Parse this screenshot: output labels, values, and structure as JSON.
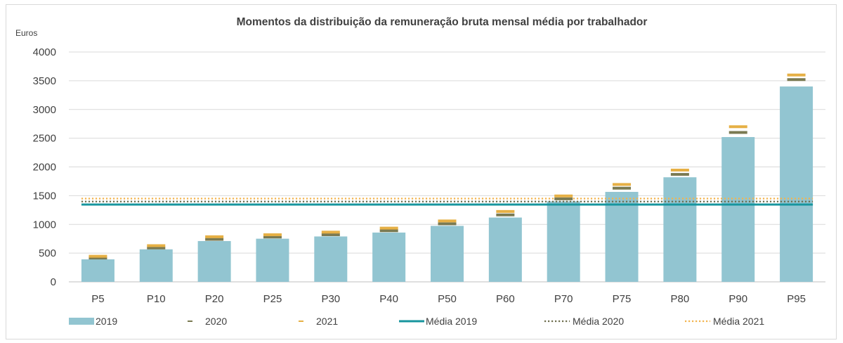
{
  "chart_data": {
    "type": "bar",
    "title": "Momentos da distribuição da remuneração bruta mensal média por trabalhador",
    "ylabel": "Euros",
    "xlabel": "",
    "ylim": [
      0,
      4000
    ],
    "yticks": [
      0,
      500,
      1000,
      1500,
      2000,
      2500,
      3000,
      3500,
      4000
    ],
    "grid": true,
    "legend_position": "bottom",
    "categories": [
      "P5",
      "P10",
      "P20",
      "P25",
      "P30",
      "P40",
      "P50",
      "P60",
      "P70",
      "P75",
      "P80",
      "P90",
      "P95"
    ],
    "series": [
      {
        "name": "2019",
        "kind": "bar",
        "color": "#92c5d1",
        "values": [
          392,
          566,
          710,
          751,
          790,
          858,
          974,
          1119,
          1400,
          1566,
          1820,
          2520,
          3400
        ]
      },
      {
        "name": "2020",
        "kind": "marker",
        "color": "#7a7a52",
        "values": [
          415,
          590,
          740,
          780,
          820,
          890,
          1010,
          1165,
          1445,
          1630,
          1870,
          2600,
          3520
        ]
      },
      {
        "name": "2021",
        "kind": "marker",
        "color": "#e6b045",
        "values": [
          445,
          630,
          785,
          820,
          865,
          935,
          1060,
          1225,
          1495,
          1695,
          1945,
          2700,
          3600
        ]
      },
      {
        "name": "Média 2019",
        "kind": "hline",
        "style": "solid",
        "color": "#17959e",
        "value": 1346
      },
      {
        "name": "Média 2020",
        "kind": "hline",
        "style": "dotted",
        "color": "#6e6e4e",
        "value": 1398
      },
      {
        "name": "Média 2021",
        "kind": "hline",
        "style": "dotted",
        "color": "#f2b34e",
        "value": 1450
      }
    ]
  }
}
